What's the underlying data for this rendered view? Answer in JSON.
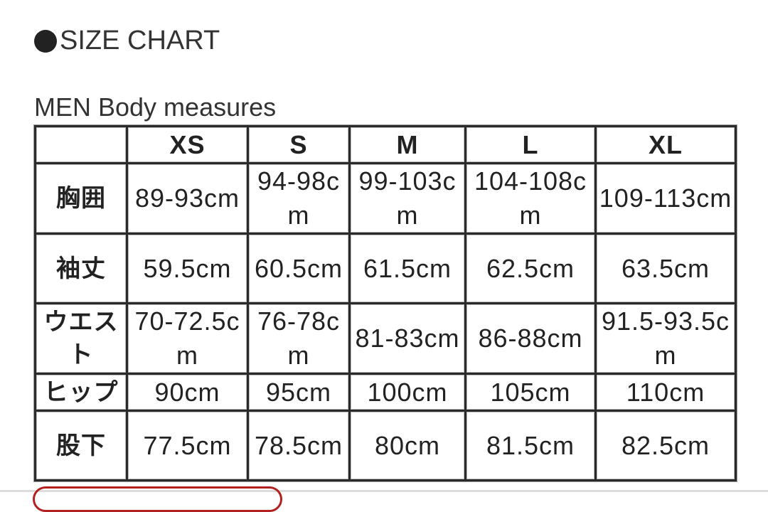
{
  "title": "SIZE CHART",
  "subtitle": "MEN Body measures",
  "table": {
    "headers": [
      "",
      "XS",
      "S",
      "M",
      "L",
      "XL"
    ],
    "rows": [
      {
        "label": "胸囲",
        "values": [
          "89-93cm",
          "94-98cm",
          "99-103cm",
          "104-108cm",
          "109-113cm"
        ]
      },
      {
        "label": "袖丈",
        "values": [
          "59.5cm",
          "60.5cm",
          "61.5cm",
          "62.5cm",
          "63.5cm"
        ]
      },
      {
        "label": "ウエスト",
        "values": [
          "70-72.5cm",
          "76-78cm",
          "81-83cm",
          "86-88cm",
          "91.5-93.5cm"
        ]
      },
      {
        "label": "ヒップ",
        "values": [
          "90cm",
          "95cm",
          "100cm",
          "105cm",
          "110cm"
        ]
      },
      {
        "label": "股下",
        "values": [
          "77.5cm",
          "78.5cm",
          "80cm",
          "81.5cm",
          "82.5cm"
        ]
      }
    ]
  },
  "colors": {
    "accent_button_border": "#b32020",
    "text": "#222222"
  }
}
